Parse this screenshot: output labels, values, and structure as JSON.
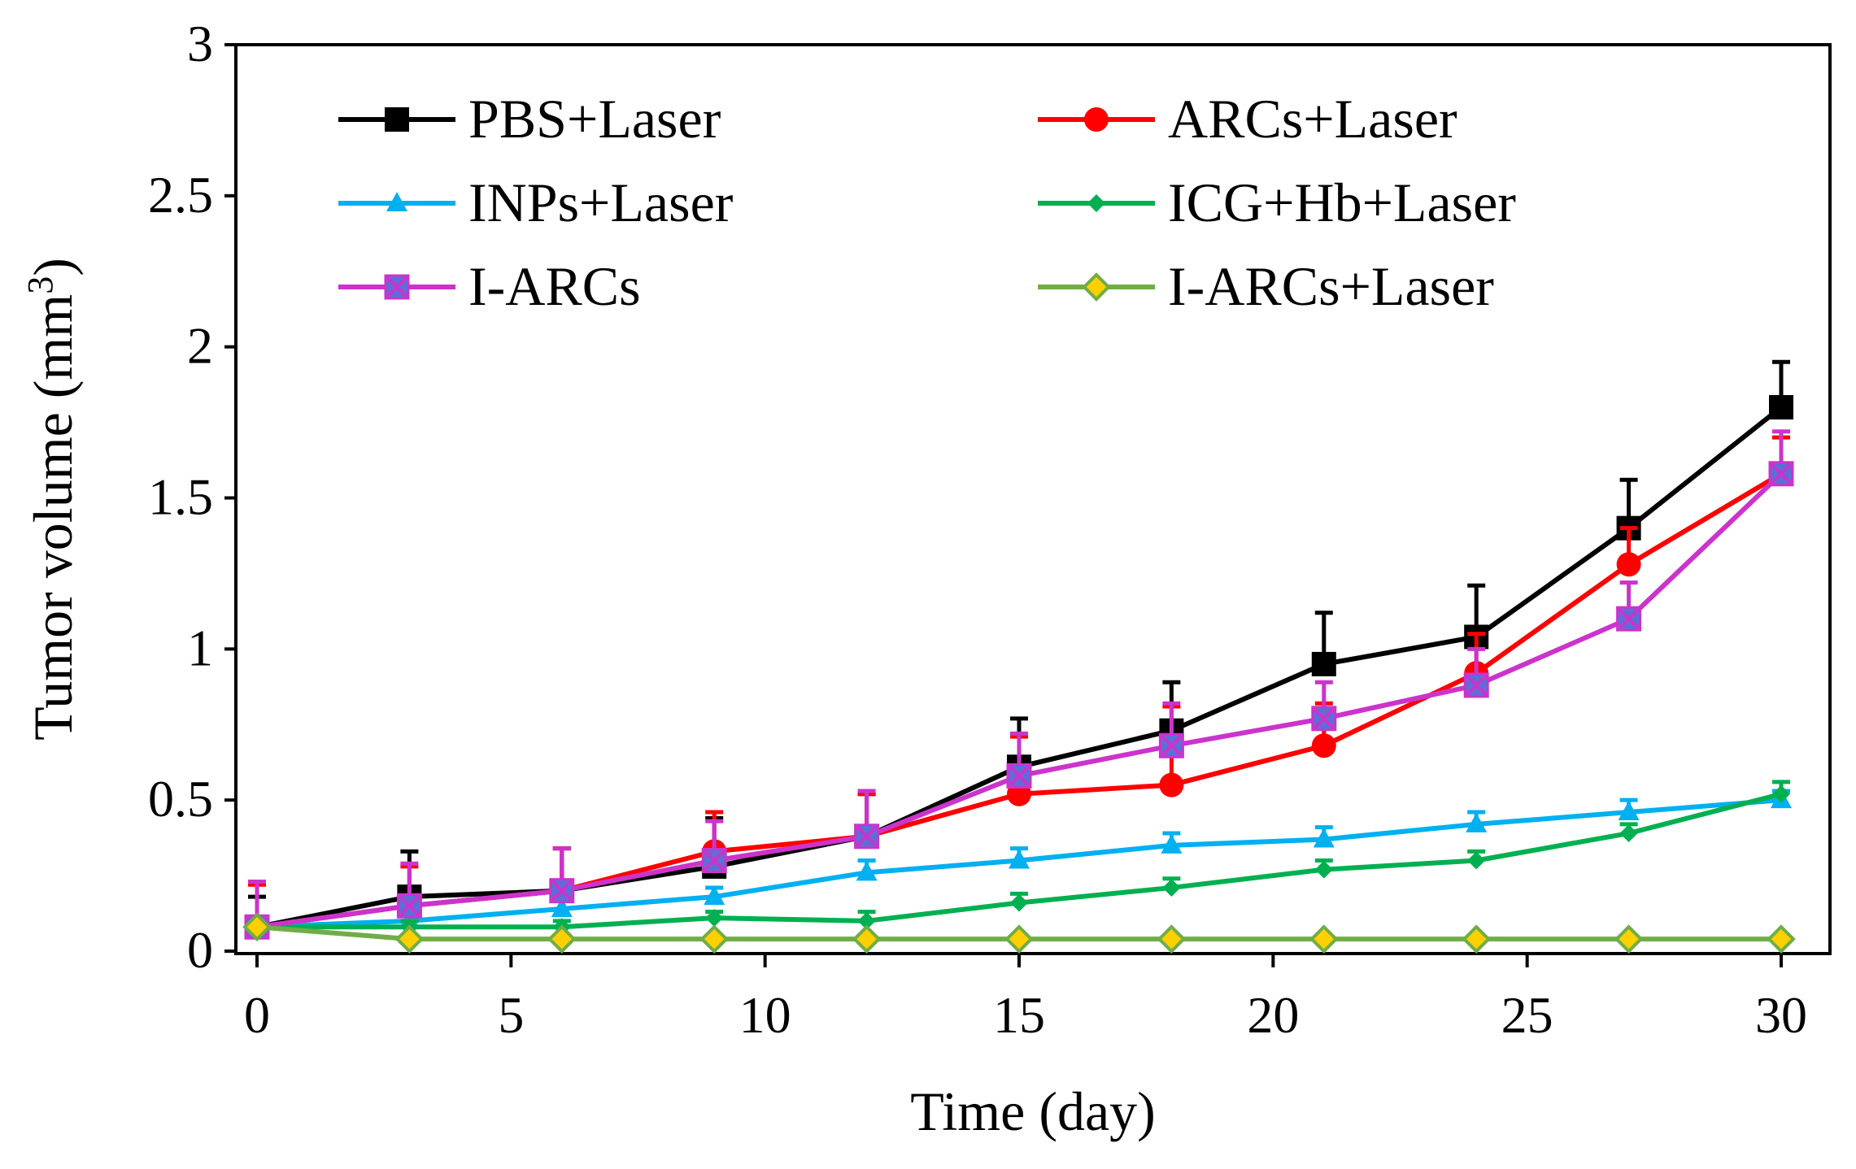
{
  "chart_data": {
    "type": "line",
    "xlabel": "Time (day)",
    "ylabel": {
      "main": "Tumor volume (mm",
      "sup": "3",
      "end": ")"
    },
    "xlim": [
      0,
      30
    ],
    "ylim": [
      0,
      3
    ],
    "xticks": [
      0,
      5,
      10,
      15,
      20,
      25,
      30
    ],
    "yticks": [
      0,
      0.5,
      1,
      1.5,
      2,
      2.5,
      3
    ],
    "xtick_labels": [
      "0",
      "5",
      "10",
      "15",
      "20",
      "25",
      "30"
    ],
    "ytick_labels": [
      "0",
      "0.5",
      "1",
      "1.5",
      "2",
      "2.5",
      "3"
    ],
    "x": [
      0,
      3,
      6,
      9,
      12,
      15,
      18,
      21,
      24,
      27,
      30
    ],
    "legend_position": "top, two columns",
    "series": [
      {
        "name": "PBS+Laser",
        "color": "#000000",
        "marker": "square",
        "values": [
          0.08,
          0.18,
          0.2,
          0.28,
          0.38,
          0.61,
          0.73,
          0.95,
          1.04,
          1.4,
          1.8
        ],
        "errors": [
          0.1,
          0.15,
          0.14,
          0.16,
          0.14,
          0.16,
          0.16,
          0.17,
          0.17,
          0.16,
          0.15
        ]
      },
      {
        "name": "ARCs+Laser",
        "color": "#ff0000",
        "marker": "circle",
        "values": [
          0.08,
          0.15,
          0.2,
          0.33,
          0.38,
          0.52,
          0.55,
          0.68,
          0.92,
          1.28,
          1.58
        ],
        "errors": [
          0.14,
          0.13,
          0.14,
          0.13,
          0.14,
          0.19,
          0.26,
          0.14,
          0.13,
          0.12,
          0.12
        ]
      },
      {
        "name": "INPs+Laser",
        "color": "#00b0f0",
        "marker": "triangle",
        "values": [
          0.08,
          0.1,
          0.14,
          0.18,
          0.26,
          0.3,
          0.35,
          0.37,
          0.42,
          0.46,
          0.5
        ],
        "errors": [
          0.03,
          0.03,
          0.03,
          0.03,
          0.04,
          0.04,
          0.04,
          0.04,
          0.04,
          0.04,
          0.03
        ]
      },
      {
        "name": "ICG+Hb+Laser",
        "color": "#00b050",
        "marker": "diamond",
        "values": [
          0.08,
          0.08,
          0.08,
          0.11,
          0.1,
          0.16,
          0.21,
          0.27,
          0.3,
          0.39,
          0.52
        ],
        "errors": [
          0.02,
          0.02,
          0.02,
          0.02,
          0.03,
          0.03,
          0.03,
          0.03,
          0.03,
          0.03,
          0.04
        ]
      },
      {
        "name": "I-ARCs",
        "color": "#cc33cc",
        "marker": "xsquare",
        "values": [
          0.08,
          0.15,
          0.2,
          0.3,
          0.38,
          0.58,
          0.68,
          0.77,
          0.88,
          1.1,
          1.58
        ],
        "errors": [
          0.15,
          0.14,
          0.14,
          0.13,
          0.15,
          0.14,
          0.14,
          0.12,
          0.12,
          0.12,
          0.14
        ]
      },
      {
        "name": "I-ARCs+Laser",
        "color": "#70ad47",
        "marker": "yellow-diamond",
        "values": [
          0.08,
          0.04,
          0.04,
          0.04,
          0.04,
          0.04,
          0.04,
          0.04,
          0.04,
          0.04,
          0.04
        ],
        "errors": [
          0.0,
          0.0,
          0.0,
          0.0,
          0.0,
          0.0,
          0.0,
          0.0,
          0.0,
          0.0,
          0.0
        ]
      }
    ]
  }
}
